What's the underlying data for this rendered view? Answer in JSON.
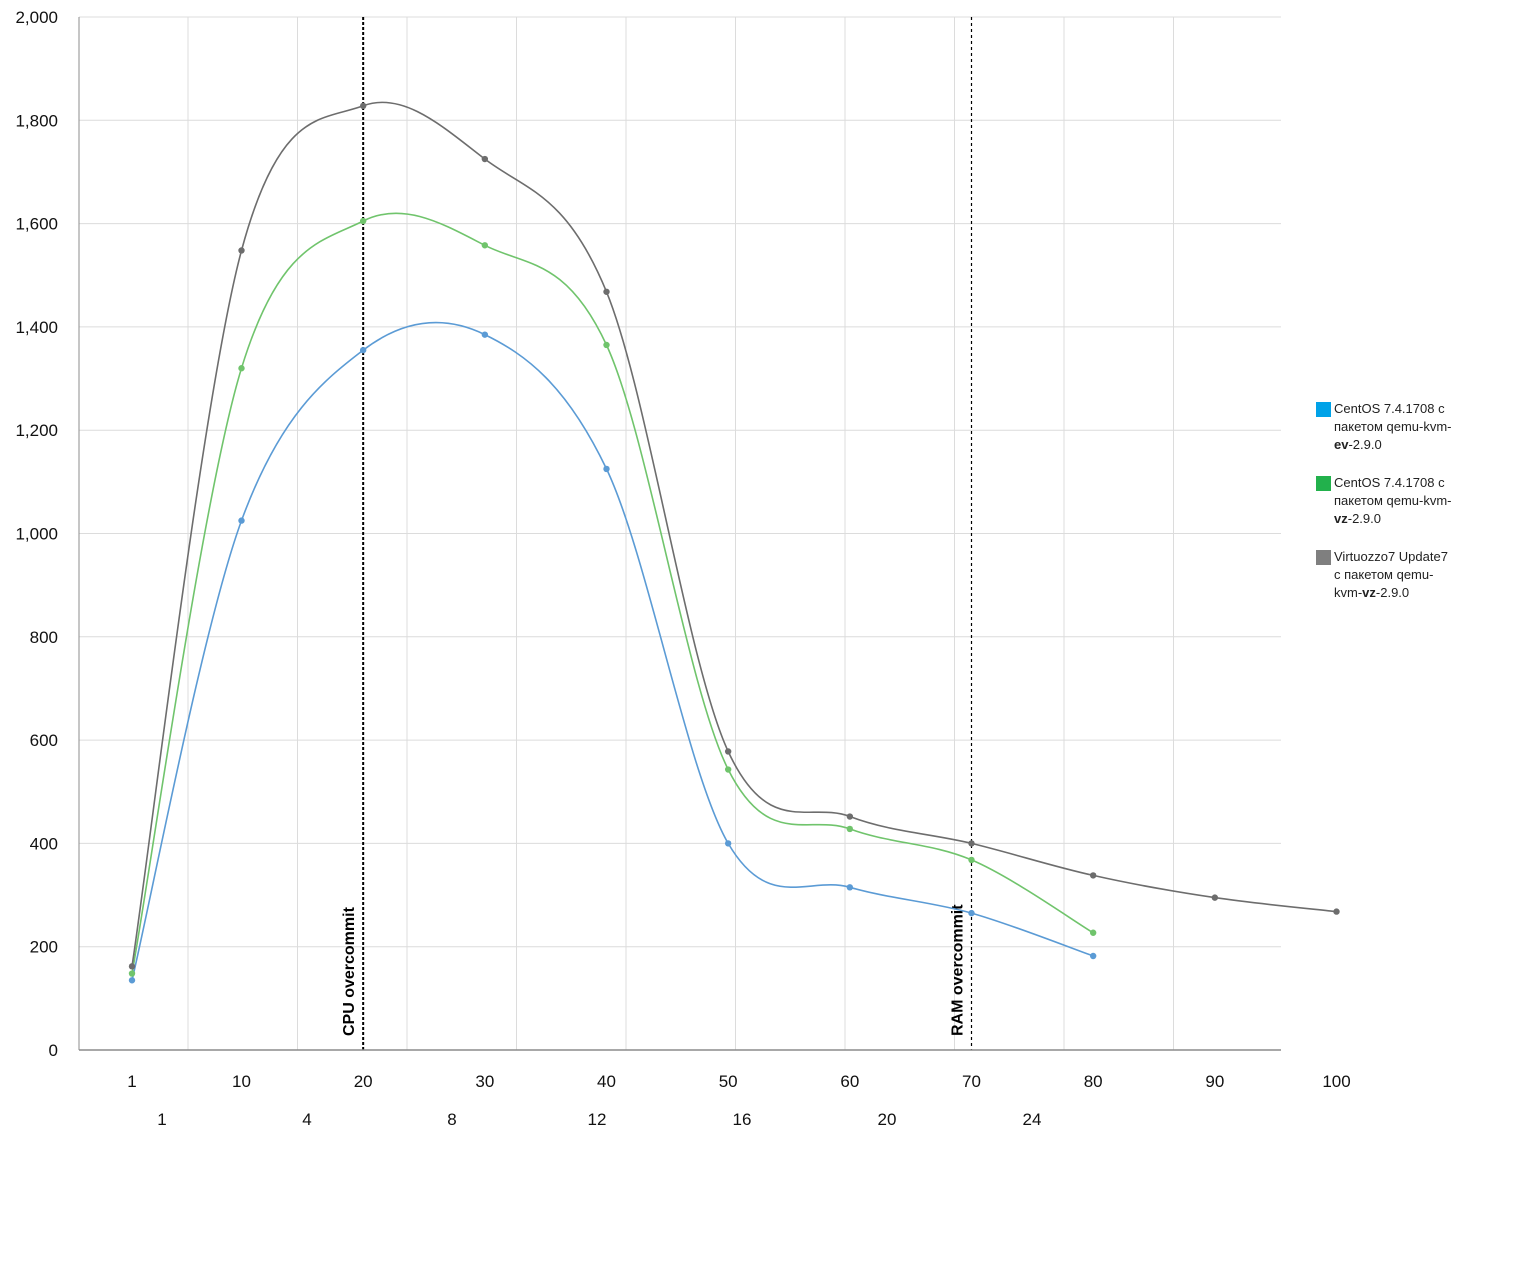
{
  "chart_data": {
    "type": "line",
    "title": "",
    "xlabel": "",
    "ylabel": "",
    "ylim": [
      0,
      2000
    ],
    "y_ticks": [
      "0",
      "200",
      "400",
      "600",
      "800",
      "1,000",
      "1,200",
      "1,400",
      "1,600",
      "1,800",
      "2,000"
    ],
    "x_ticks_primary": [
      "1",
      "10",
      "20",
      "30",
      "40",
      "50",
      "60",
      "70",
      "80",
      "90",
      "100"
    ],
    "x_ticks_secondary": [
      "1",
      "4",
      "8",
      "12",
      "16",
      "20",
      "24"
    ],
    "grid": true,
    "legend_position": "right",
    "vertical_markers": [
      {
        "x": 20,
        "label": "CPU overcommit",
        "style": "dense-dotted"
      },
      {
        "x": 70,
        "label": "RAM overcommit",
        "style": "sparse-dotted"
      }
    ],
    "series": [
      {
        "legend_lines": [
          {
            "parts": [
              {
                "text": "CentOS 7.4.1708 с"
              }
            ]
          },
          {
            "parts": [
              {
                "text": "пакетом qemu-kvm-"
              }
            ]
          },
          {
            "parts": [
              {
                "text": "ev",
                "bold": true
              },
              {
                "text": "-2.9.0"
              }
            ]
          }
        ],
        "color": "#5b9bd5",
        "legend_color": "#00a2e8",
        "x": [
          1,
          10,
          20,
          30,
          40,
          50,
          60,
          70,
          80
        ],
        "values": [
          135,
          1025,
          1355,
          1385,
          1125,
          400,
          315,
          265,
          182
        ]
      },
      {
        "legend_lines": [
          {
            "parts": [
              {
                "text": "CentOS 7.4.1708 с"
              }
            ]
          },
          {
            "parts": [
              {
                "text": "пакетом qemu-kvm-"
              }
            ]
          },
          {
            "parts": [
              {
                "text": "vz",
                "bold": true
              },
              {
                "text": "-2.9.0"
              }
            ]
          }
        ],
        "color": "#70c46c",
        "legend_color": "#22b14c",
        "x": [
          1,
          10,
          20,
          30,
          40,
          50,
          60,
          70,
          80
        ],
        "values": [
          148,
          1320,
          1605,
          1558,
          1365,
          543,
          428,
          368,
          227
        ]
      },
      {
        "legend_lines": [
          {
            "parts": [
              {
                "text": "Virtuozzo7 Update7"
              }
            ]
          },
          {
            "parts": [
              {
                "text": "с пакетом qemu-"
              }
            ]
          },
          {
            "parts": [
              {
                "text": "kvm-"
              },
              {
                "text": "vz",
                "bold": true
              },
              {
                "text": "-2.9.0"
              }
            ]
          }
        ],
        "color": "#6d6d6d",
        "legend_color": "#7f7f7f",
        "x": [
          1,
          10,
          20,
          30,
          40,
          50,
          60,
          70,
          80,
          90,
          100
        ],
        "values": [
          162,
          1548,
          1828,
          1725,
          1468,
          578,
          452,
          400,
          338,
          295,
          268
        ]
      }
    ]
  }
}
